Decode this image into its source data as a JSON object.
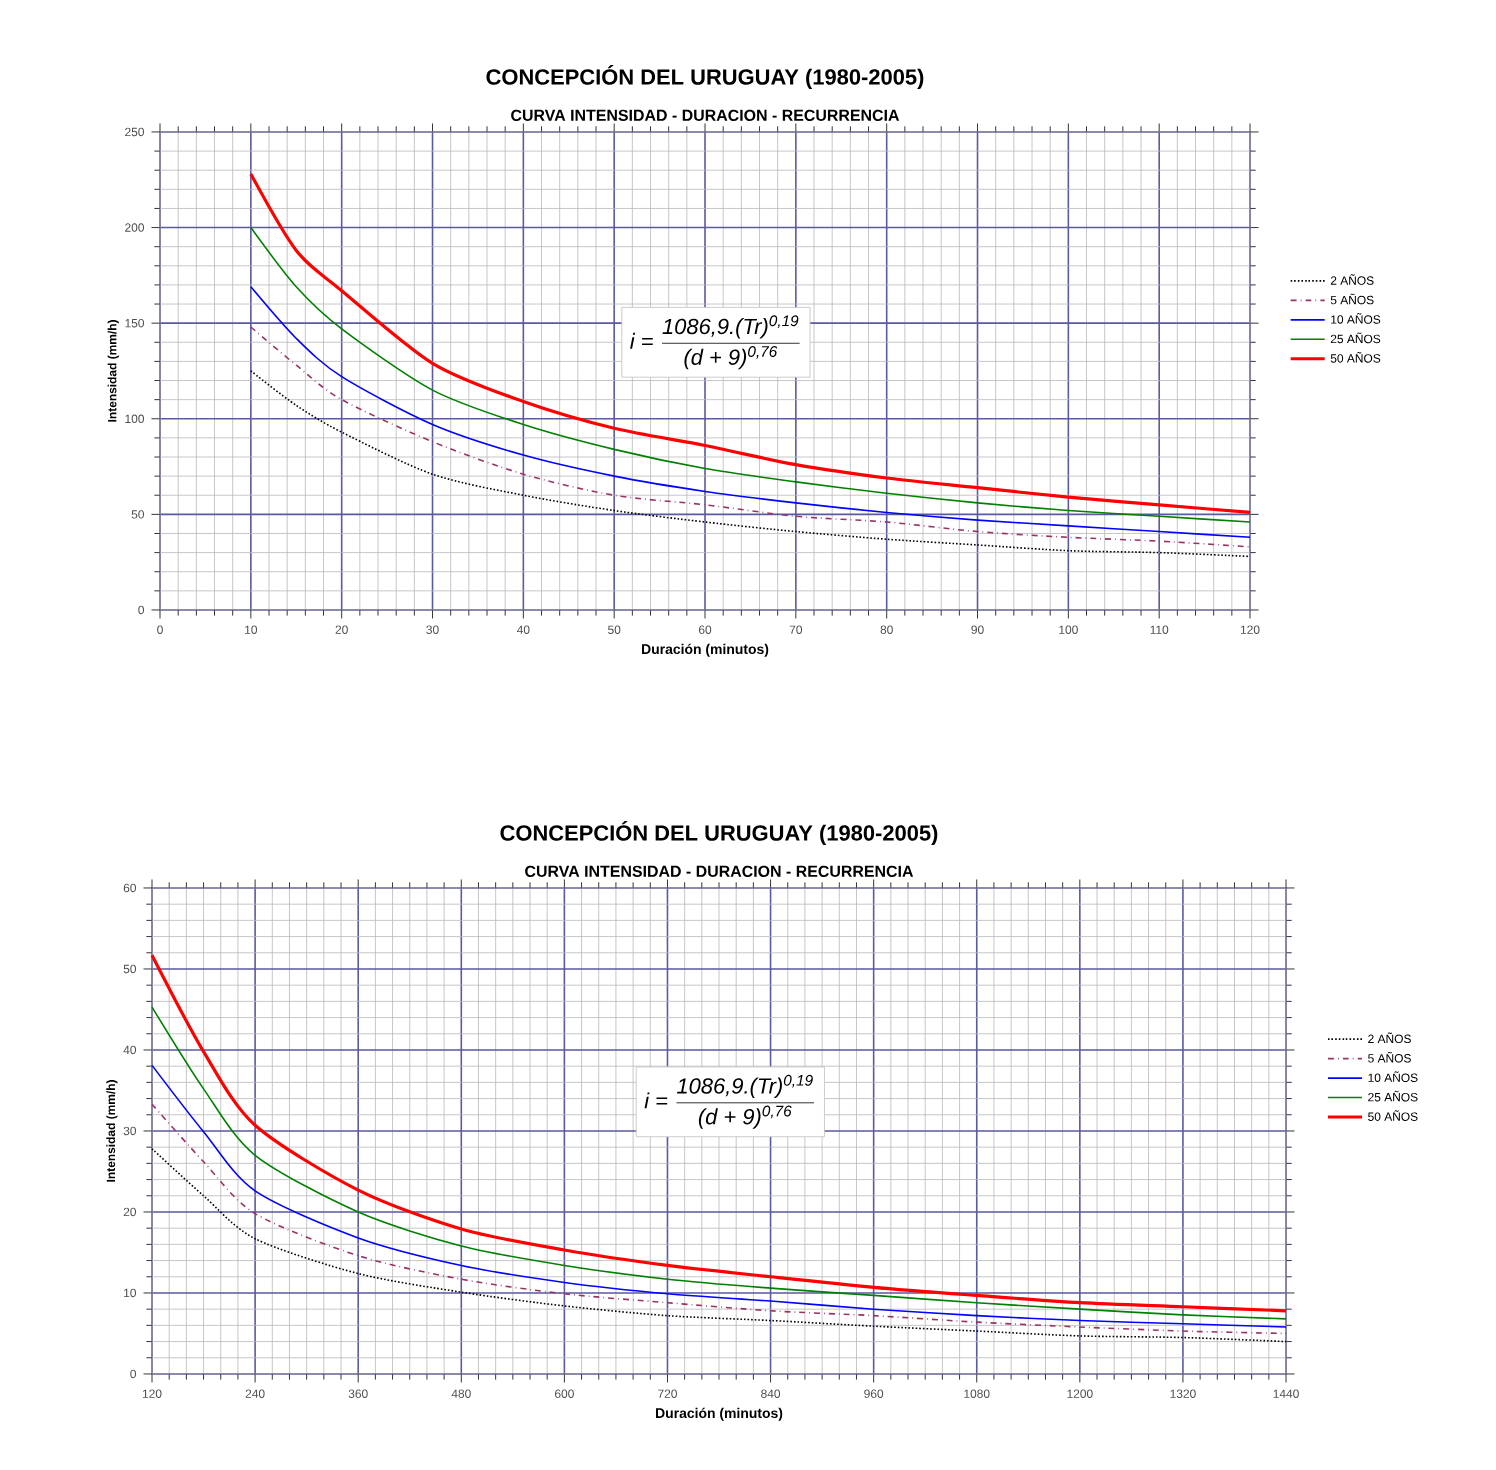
{
  "chart_data": [
    {
      "type": "line",
      "title": "CONCEPCIÓN DEL URUGUAY (1980-2005)",
      "subtitle": "CURVA INTENSIDAD - DURACION - RECURRENCIA",
      "xlabel": "Duración (minutos)",
      "ylabel": "Intensidad (mm/h)",
      "x": [
        10,
        15,
        20,
        30,
        40,
        50,
        60,
        70,
        80,
        90,
        100,
        110,
        120
      ],
      "series": [
        {
          "name": "2 AÑOS",
          "color": "#000000",
          "line_style": "dotted",
          "values": [
            125,
            107,
            93,
            71,
            60,
            52,
            46,
            41,
            37,
            34,
            31,
            30,
            28
          ]
        },
        {
          "name": "5 AÑOS",
          "color": "#993366",
          "line_style": "dashed",
          "values": [
            148,
            128,
            110,
            88,
            71,
            60,
            55,
            49,
            46,
            41,
            38,
            36,
            33
          ]
        },
        {
          "name": "10 AÑOS",
          "color": "#0000ff",
          "line_style": "solid",
          "values": [
            169,
            142,
            122,
            97,
            81,
            70,
            62,
            56,
            51,
            47,
            44,
            41,
            38
          ]
        },
        {
          "name": "25 AÑOS",
          "color": "#008000",
          "line_style": "solid",
          "values": [
            200,
            169,
            147,
            115,
            97,
            84,
            74,
            67,
            61,
            56,
            52,
            49,
            46
          ]
        },
        {
          "name": "50 AÑOS",
          "color": "#ff0000",
          "line_style": "solid",
          "values": [
            228,
            188,
            167,
            129,
            109,
            95,
            86,
            76,
            69,
            64,
            59,
            55,
            51
          ]
        }
      ],
      "xlim": [
        0,
        120
      ],
      "ylim": [
        0,
        250
      ],
      "xticks": [
        0,
        10,
        20,
        30,
        40,
        50,
        60,
        70,
        80,
        90,
        100,
        110,
        120
      ],
      "yticks": [
        0,
        50,
        100,
        150,
        200,
        250
      ],
      "grid": true,
      "legend": "right",
      "annotations": [
        "i =",
        "1086,9.(Tr)$^{0,19}$",
        "(d + 9)$^{0,76}$"
      ]
    },
    {
      "type": "line",
      "title": "CONCEPCIÓN DEL URUGUAY (1980-2005)",
      "subtitle": "CURVA INTENSIDAD - DURACION - RECURRENCIA",
      "xlabel": "Duración (minutos)",
      "ylabel": "Intensidad (mm/h)",
      "x": [
        120,
        180,
        240,
        360,
        480,
        600,
        720,
        840,
        960,
        1080,
        1200,
        1320,
        1440
      ],
      "series": [
        {
          "name": "2 AÑOS",
          "color": "#000000",
          "line_style": "dotted",
          "values": [
            27.8,
            22,
            16.7,
            12.4,
            10.1,
            8.4,
            7.2,
            6.6,
            5.9,
            5.3,
            4.7,
            4.5,
            4.0
          ]
        },
        {
          "name": "5 AÑOS",
          "color": "#993366",
          "line_style": "dashed",
          "values": [
            33.3,
            26.2,
            19.8,
            14.6,
            11.7,
            9.9,
            8.8,
            7.8,
            7.2,
            6.4,
            5.8,
            5.3,
            5.0
          ]
        },
        {
          "name": "10 AÑOS",
          "color": "#0000ff",
          "line_style": "solid",
          "values": [
            38.1,
            29.9,
            22.6,
            16.8,
            13.4,
            11.3,
            9.9,
            9.0,
            8.0,
            7.2,
            6.6,
            6.2,
            5.8
          ]
        },
        {
          "name": "25 AÑOS",
          "color": "#008000",
          "line_style": "solid",
          "values": [
            45.3,
            35.2,
            27,
            20,
            15.8,
            13.4,
            11.7,
            10.6,
            9.7,
            8.8,
            8.0,
            7.3,
            6.8
          ]
        },
        {
          "name": "50 AÑOS",
          "color": "#ff0000",
          "line_style": "solid",
          "values": [
            51.7,
            39.8,
            30.7,
            22.7,
            17.9,
            15.3,
            13.4,
            12,
            10.7,
            9.7,
            8.8,
            8.3,
            7.8
          ]
        }
      ],
      "xlim": [
        120,
        1440
      ],
      "ylim": [
        0,
        60
      ],
      "xticks": [
        120,
        240,
        360,
        480,
        600,
        720,
        840,
        960,
        1080,
        1200,
        1320,
        1440
      ],
      "yticks": [
        0,
        10,
        20,
        30,
        40,
        50,
        60
      ],
      "grid": true,
      "legend": "right",
      "annotations": [
        "i =",
        "1086,9.(Tr)$^{0,19}$",
        "(d + 9)$^{0,76}$"
      ]
    }
  ]
}
